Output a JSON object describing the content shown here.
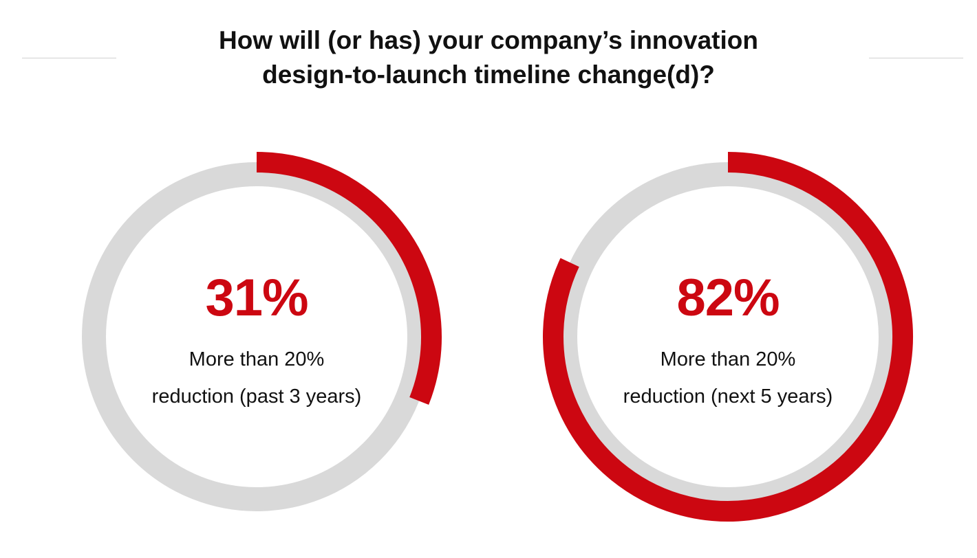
{
  "chart_data": {
    "type": "pie",
    "title": "How will (or has) your company’s innovation design-to-launch timeline change(d)?",
    "title_lines": [
      "How will (or has) your company’s innovation",
      "design-to-launch timeline change(d)?"
    ],
    "series": [
      {
        "name": "More than 20% reduction (past 3 years)",
        "value": 31,
        "value_label": "31%",
        "label_lines": [
          "More than 20%",
          "reduction (past 3 years)"
        ]
      },
      {
        "name": "More than 20% reduction (next 5 years)",
        "value": 82,
        "value_label": "82%",
        "label_lines": [
          "More than 20%",
          "reduction (next 5 years)"
        ]
      }
    ],
    "colors": {
      "accent": "#cc0711",
      "track": "#d9d9d9"
    }
  }
}
